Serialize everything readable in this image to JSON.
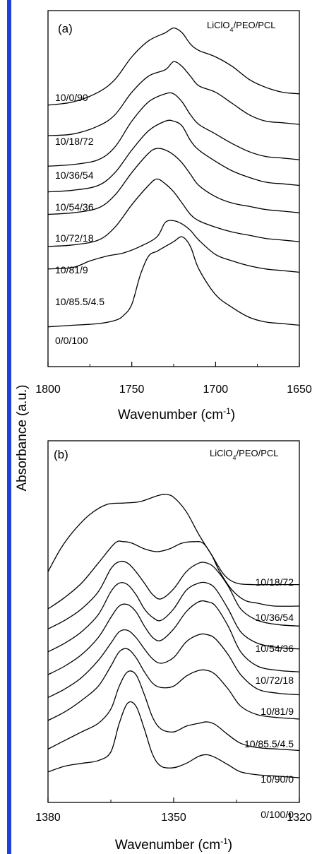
{
  "figure": {
    "accent_bar_color": "#1f3fd6",
    "y_axis_label": "Absorbance (a.u.)"
  },
  "chart_data": [
    {
      "type": "line",
      "panel_label": "(a)",
      "legend_title_main": "LiClO",
      "legend_title_sub": "4",
      "legend_title_rest": "/PEO/PCL",
      "xlabel_main": "Wavenumber (cm",
      "xlabel_sup": "-1",
      "xlabel_close": ")",
      "xlim": [
        1800,
        1650
      ],
      "x_ticks": [
        1800,
        1750,
        1700,
        1650
      ],
      "x_tick_labels": [
        "1800",
        "1750",
        "1700",
        "1650"
      ],
      "series": [
        {
          "name": "10/0/90",
          "x": [
            1800,
            1785,
            1770,
            1760,
            1750,
            1740,
            1730,
            1725,
            1720,
            1715,
            1710,
            1700,
            1690,
            1680,
            1670,
            1660,
            1650
          ],
          "y": [
            0.75,
            0.76,
            0.79,
            0.83,
            0.9,
            0.95,
            0.975,
            0.99,
            0.975,
            0.94,
            0.92,
            0.9,
            0.87,
            0.83,
            0.805,
            0.79,
            0.785
          ]
        },
        {
          "name": "10/18/72",
          "x": [
            1800,
            1785,
            1770,
            1760,
            1750,
            1740,
            1730,
            1725,
            1720,
            1715,
            1710,
            1700,
            1690,
            1680,
            1670,
            1660,
            1650
          ],
          "y": [
            0.655,
            0.66,
            0.685,
            0.72,
            0.79,
            0.84,
            0.86,
            0.885,
            0.87,
            0.84,
            0.81,
            0.79,
            0.755,
            0.72,
            0.7,
            0.695,
            0.69
          ]
        },
        {
          "name": "10/36/54",
          "x": [
            1800,
            1785,
            1770,
            1760,
            1750,
            1740,
            1730,
            1725,
            1720,
            1715,
            1710,
            1700,
            1690,
            1680,
            1670,
            1660,
            1650
          ],
          "y": [
            0.56,
            0.565,
            0.58,
            0.62,
            0.7,
            0.76,
            0.785,
            0.785,
            0.76,
            0.72,
            0.69,
            0.66,
            0.63,
            0.605,
            0.59,
            0.585,
            0.58
          ]
        },
        {
          "name": "10/54/36",
          "x": [
            1800,
            1785,
            1770,
            1760,
            1750,
            1740,
            1730,
            1725,
            1720,
            1715,
            1710,
            1700,
            1690,
            1680,
            1670,
            1660,
            1650
          ],
          "y": [
            0.48,
            0.485,
            0.5,
            0.54,
            0.61,
            0.67,
            0.7,
            0.7,
            0.685,
            0.64,
            0.61,
            0.575,
            0.545,
            0.525,
            0.51,
            0.505,
            0.5
          ]
        },
        {
          "name": "10/72/18",
          "x": [
            1800,
            1785,
            1770,
            1760,
            1750,
            1740,
            1735,
            1730,
            1725,
            1720,
            1715,
            1710,
            1700,
            1690,
            1680,
            1670,
            1660,
            1650
          ],
          "y": [
            0.41,
            0.415,
            0.43,
            0.47,
            0.54,
            0.6,
            0.615,
            0.61,
            0.595,
            0.57,
            0.535,
            0.5,
            0.465,
            0.445,
            0.435,
            0.425,
            0.42,
            0.415
          ]
        },
        {
          "name": "10/81/9",
          "x": [
            1800,
            1785,
            1770,
            1760,
            1750,
            1740,
            1735,
            1730,
            1725,
            1720,
            1715,
            1710,
            1700,
            1690,
            1680,
            1670,
            1660,
            1650
          ],
          "y": [
            0.31,
            0.315,
            0.33,
            0.37,
            0.44,
            0.5,
            0.52,
            0.505,
            0.48,
            0.445,
            0.41,
            0.39,
            0.37,
            0.355,
            0.345,
            0.335,
            0.33,
            0.325
          ]
        },
        {
          "name": "10/85.5/4.5",
          "x": [
            1800,
            1785,
            1775,
            1765,
            1755,
            1745,
            1735,
            1730,
            1725,
            1720,
            1715,
            1710,
            1700,
            1690,
            1680,
            1670,
            1660,
            1650
          ],
          "y": [
            0.24,
            0.245,
            0.265,
            0.28,
            0.29,
            0.31,
            0.34,
            0.385,
            0.39,
            0.38,
            0.36,
            0.33,
            0.285,
            0.265,
            0.25,
            0.24,
            0.235,
            0.23
          ]
        },
        {
          "name": "0/0/100",
          "x": [
            1800,
            1785,
            1770,
            1760,
            1755,
            1750,
            1745,
            1740,
            1735,
            1730,
            1725,
            1720,
            1715,
            1710,
            1700,
            1690,
            1680,
            1670,
            1660,
            1650
          ],
          "y": [
            0.06,
            0.065,
            0.07,
            0.08,
            0.095,
            0.13,
            0.22,
            0.28,
            0.295,
            0.31,
            0.325,
            0.34,
            0.31,
            0.24,
            0.16,
            0.12,
            0.09,
            0.075,
            0.07,
            0.065
          ]
        }
      ]
    },
    {
      "type": "line",
      "panel_label": "(b)",
      "legend_title_main": "LiClO",
      "legend_title_sub": "4",
      "legend_title_rest": "/PEO/PCL",
      "xlabel_main": "Wavenumber (cm",
      "xlabel_sup": "-1",
      "xlabel_close": ")",
      "xlim": [
        1380,
        1320
      ],
      "x_ticks": [
        1380,
        1350,
        1320
      ],
      "x_tick_labels": [
        "1380",
        "1350",
        "1320"
      ],
      "series": [
        {
          "name": "",
          "x": [
            1380,
            1377,
            1374,
            1370,
            1366,
            1362,
            1358,
            1354,
            1352,
            1350,
            1347,
            1344,
            1341,
            1338,
            1335,
            1331,
            1328,
            1325,
            1320
          ],
          "y": [
            0.73,
            0.81,
            0.87,
            0.93,
            0.965,
            0.97,
            0.975,
            0.995,
            1.0,
            0.99,
            0.94,
            0.86,
            0.79,
            0.72,
            0.69,
            0.685,
            0.685,
            0.685,
            0.685
          ]
        },
        {
          "name": "10/18/72",
          "x": [
            1380,
            1376,
            1372,
            1368,
            1364,
            1362,
            1360,
            1357,
            1354,
            1351,
            1348,
            1345,
            1343,
            1341,
            1339,
            1336,
            1333,
            1330,
            1326,
            1320
          ],
          "y": [
            0.6,
            0.64,
            0.69,
            0.76,
            0.83,
            0.835,
            0.83,
            0.81,
            0.8,
            0.81,
            0.83,
            0.835,
            0.83,
            0.79,
            0.73,
            0.665,
            0.63,
            0.62,
            0.61,
            0.61
          ]
        },
        {
          "name": "10/36/54",
          "x": [
            1380,
            1376,
            1372,
            1368,
            1365,
            1363,
            1361,
            1359,
            1357,
            1355,
            1353,
            1350,
            1347,
            1344,
            1342,
            1340,
            1337,
            1334,
            1330,
            1325,
            1320
          ],
          "y": [
            0.53,
            0.56,
            0.6,
            0.66,
            0.74,
            0.765,
            0.76,
            0.73,
            0.69,
            0.65,
            0.635,
            0.67,
            0.73,
            0.76,
            0.76,
            0.74,
            0.68,
            0.6,
            0.56,
            0.545,
            0.54
          ]
        },
        {
          "name": "10/54/36",
          "x": [
            1380,
            1376,
            1372,
            1368,
            1365,
            1363,
            1361,
            1359,
            1357,
            1355,
            1353,
            1350,
            1347,
            1344,
            1342,
            1340,
            1337,
            1334,
            1330,
            1325,
            1320
          ],
          "y": [
            0.45,
            0.48,
            0.52,
            0.58,
            0.66,
            0.69,
            0.685,
            0.65,
            0.6,
            0.57,
            0.56,
            0.6,
            0.665,
            0.69,
            0.69,
            0.67,
            0.6,
            0.52,
            0.48,
            0.465,
            0.46
          ]
        },
        {
          "name": "10/72/18",
          "x": [
            1380,
            1376,
            1372,
            1368,
            1365,
            1363,
            1361,
            1359,
            1357,
            1355,
            1353,
            1350,
            1347,
            1344,
            1342,
            1340,
            1337,
            1334,
            1330,
            1325,
            1320
          ],
          "y": [
            0.37,
            0.4,
            0.44,
            0.5,
            0.57,
            0.61,
            0.615,
            0.59,
            0.54,
            0.5,
            0.49,
            0.53,
            0.59,
            0.625,
            0.625,
            0.61,
            0.54,
            0.45,
            0.4,
            0.385,
            0.38
          ]
        },
        {
          "name": "10/81/9",
          "x": [
            1380,
            1376,
            1372,
            1368,
            1365,
            1363,
            1361,
            1359,
            1357,
            1355,
            1353,
            1350,
            1347,
            1344,
            1342,
            1340,
            1337,
            1334,
            1330,
            1325,
            1320
          ],
          "y": [
            0.29,
            0.32,
            0.36,
            0.42,
            0.48,
            0.52,
            0.525,
            0.5,
            0.46,
            0.425,
            0.41,
            0.43,
            0.485,
            0.51,
            0.51,
            0.495,
            0.44,
            0.37,
            0.32,
            0.305,
            0.3
          ]
        },
        {
          "name": "10/85.5/4.5",
          "x": [
            1380,
            1376,
            1372,
            1368,
            1365,
            1363,
            1361,
            1359,
            1357,
            1355,
            1353,
            1350,
            1347,
            1344,
            1342,
            1340,
            1337,
            1334,
            1330,
            1325,
            1320
          ],
          "y": [
            0.21,
            0.24,
            0.28,
            0.33,
            0.4,
            0.45,
            0.46,
            0.43,
            0.38,
            0.34,
            0.325,
            0.33,
            0.365,
            0.385,
            0.385,
            0.37,
            0.32,
            0.26,
            0.23,
            0.22,
            0.215
          ]
        },
        {
          "name": "10/90/0",
          "x": [
            1380,
            1376,
            1372,
            1368,
            1365,
            1363,
            1361,
            1359,
            1357,
            1355,
            1353,
            1350,
            1347,
            1344,
            1342,
            1340,
            1337,
            1334,
            1330,
            1325,
            1320
          ],
          "y": [
            0.11,
            0.14,
            0.17,
            0.2,
            0.25,
            0.33,
            0.38,
            0.37,
            0.3,
            0.22,
            0.18,
            0.17,
            0.19,
            0.2,
            0.205,
            0.195,
            0.16,
            0.13,
            0.115,
            0.11,
            0.105
          ]
        },
        {
          "name": "0/100/0",
          "x": [
            1320
          ],
          "y": [
            0.0
          ]
        }
      ]
    }
  ]
}
